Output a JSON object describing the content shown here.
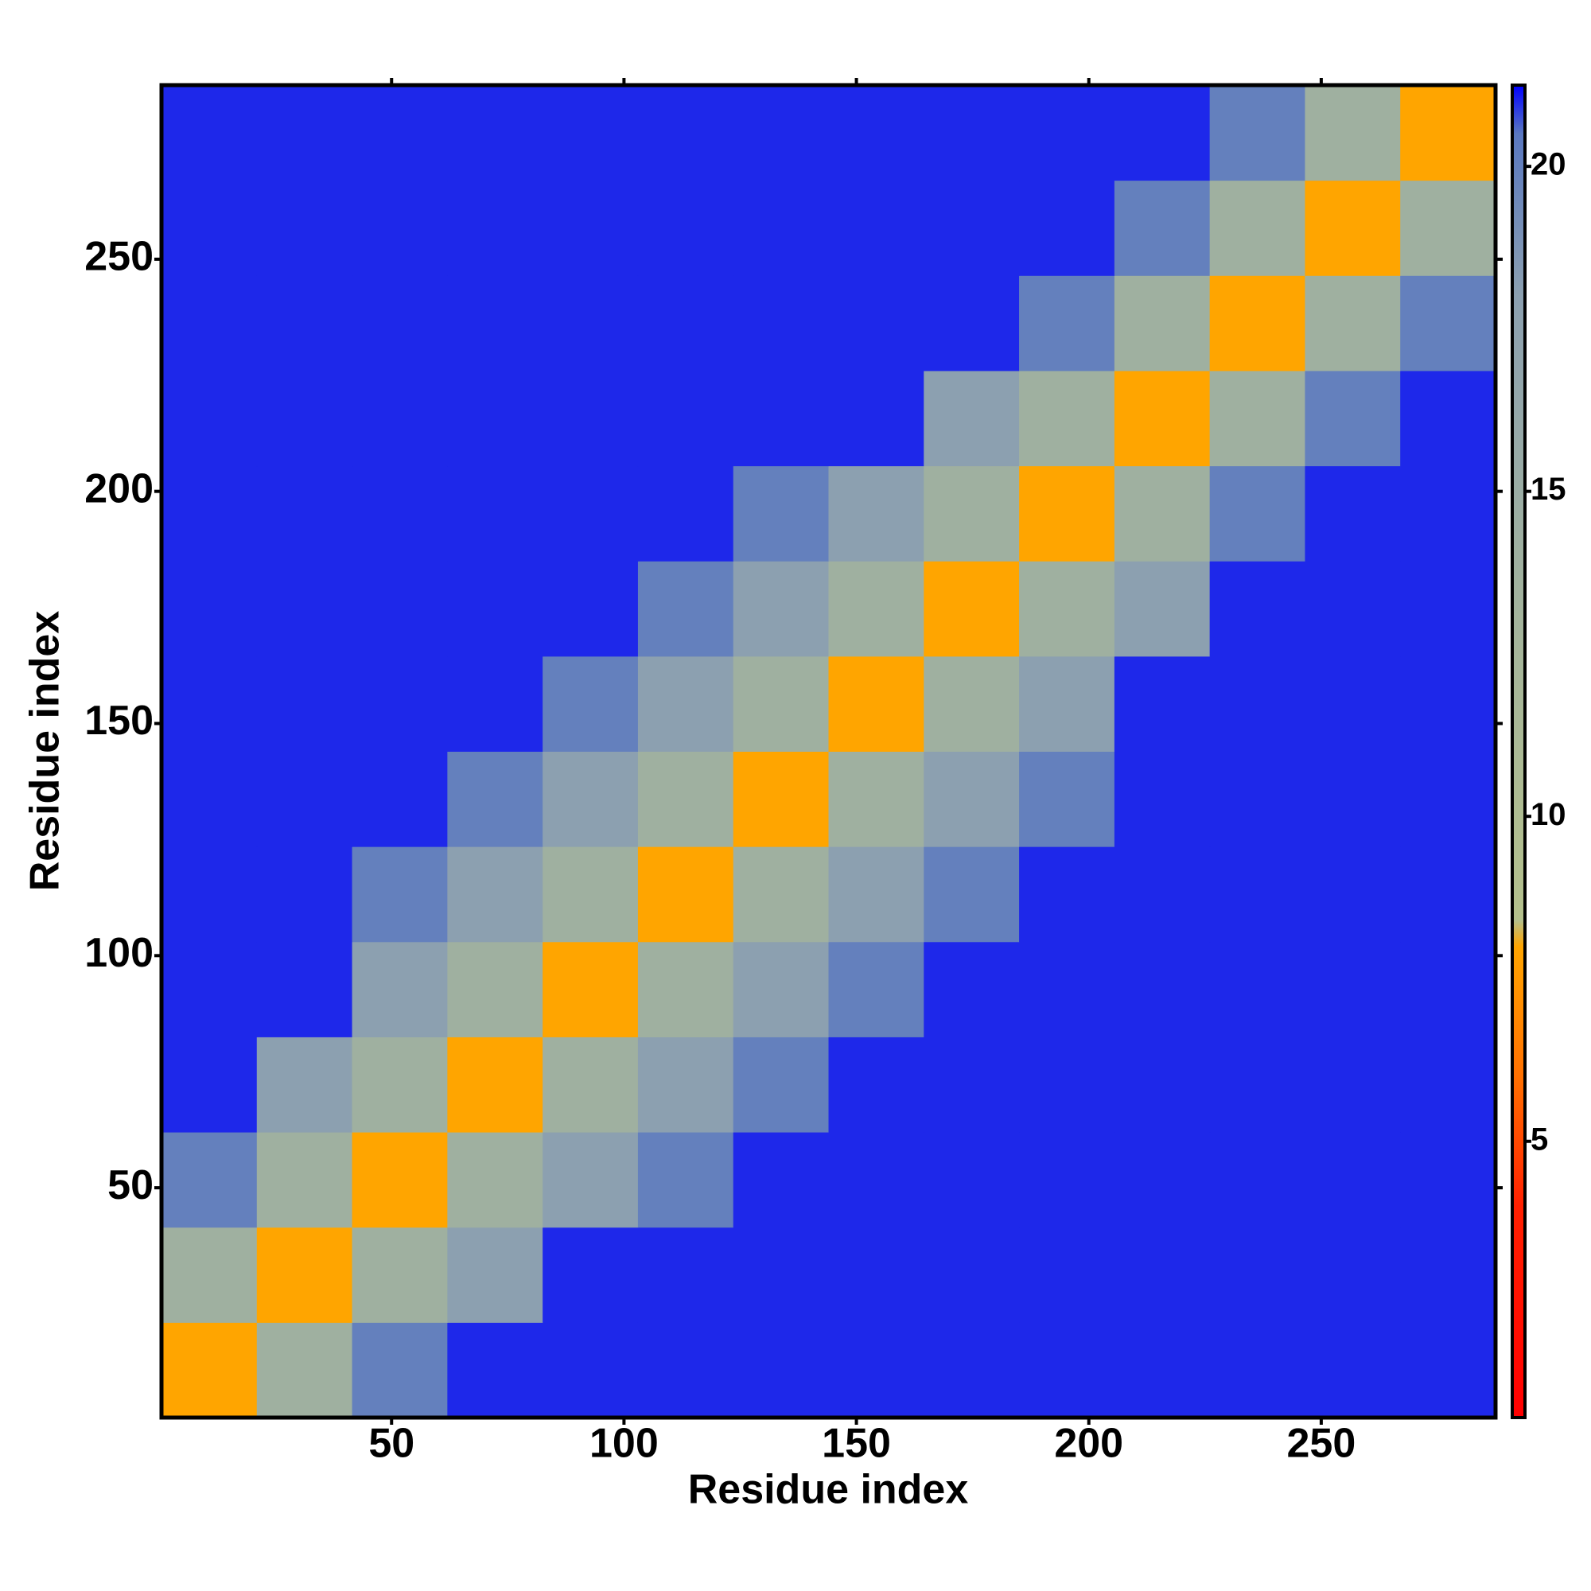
{
  "chart_data": {
    "type": "heatmap",
    "x_label": "Residue index",
    "y_label": "Residue index",
    "xbins": [
      0.5,
      21,
      41.5,
      62,
      82.5,
      103,
      123.5,
      144,
      164.5,
      185,
      205.5,
      226,
      246.5,
      267,
      287.5
    ],
    "ybins": [
      0.5,
      21,
      41.5,
      62,
      82.5,
      103,
      123.5,
      144,
      164.5,
      185,
      205.5,
      226,
      246.5,
      267,
      287.5
    ],
    "z": [
      [
        8,
        14,
        20,
        21,
        21,
        21,
        21,
        21,
        21,
        21,
        21,
        21,
        21,
        21
      ],
      [
        14,
        8,
        14,
        18,
        21,
        21,
        21,
        21,
        21,
        21,
        21,
        21,
        21,
        21
      ],
      [
        20,
        14,
        8,
        14,
        18,
        20,
        21,
        21,
        21,
        21,
        21,
        21,
        21,
        21
      ],
      [
        21,
        18,
        14,
        8,
        14,
        18,
        20,
        21,
        21,
        21,
        21,
        21,
        21,
        21
      ],
      [
        21,
        21,
        18,
        14,
        8,
        14,
        18,
        20,
        21,
        21,
        21,
        21,
        21,
        21
      ],
      [
        21,
        21,
        20,
        18,
        14,
        8,
        14,
        18,
        20,
        21,
        21,
        21,
        21,
        21
      ],
      [
        21,
        21,
        21,
        20,
        18,
        14,
        8,
        14,
        18,
        20,
        21,
        21,
        21,
        21
      ],
      [
        21,
        21,
        21,
        21,
        20,
        18,
        14,
        8,
        14,
        18,
        21,
        21,
        21,
        21
      ],
      [
        21,
        21,
        21,
        21,
        21,
        20,
        18,
        14,
        8,
        14,
        18,
        21,
        21,
        21
      ],
      [
        21,
        21,
        21,
        21,
        21,
        21,
        20,
        18,
        14,
        8,
        14,
        20,
        21,
        21
      ],
      [
        21,
        21,
        21,
        21,
        21,
        21,
        21,
        21,
        18,
        14,
        8,
        14,
        20,
        21
      ],
      [
        21,
        21,
        21,
        21,
        21,
        21,
        21,
        21,
        21,
        20,
        14,
        8,
        14,
        20
      ],
      [
        21,
        21,
        21,
        21,
        21,
        21,
        21,
        21,
        21,
        21,
        20,
        14,
        8,
        14
      ],
      [
        21,
        21,
        21,
        21,
        21,
        21,
        21,
        21,
        21,
        21,
        21,
        20,
        14,
        8
      ]
    ],
    "xlim": [
      0.5,
      287.5
    ],
    "ylim": [
      0.5,
      287.5
    ],
    "xticks": [
      50,
      100,
      150,
      200,
      250
    ],
    "yticks": [
      50,
      100,
      150,
      200,
      250
    ],
    "colorscale": [
      [
        0.75,
        "#ff0000"
      ],
      [
        4,
        "#ff2000"
      ],
      [
        6,
        "#ff7000"
      ],
      [
        8,
        "#ffa500"
      ],
      [
        8.4,
        "#b4c08c"
      ],
      [
        13,
        "#a4b49c"
      ],
      [
        18,
        "#8ca0b0"
      ],
      [
        20.5,
        "#5a78c0"
      ],
      [
        21.25,
        "#0000ff"
      ]
    ],
    "clim": [
      0.75,
      21.25
    ],
    "cticks": [
      5,
      10,
      15,
      20
    ]
  }
}
